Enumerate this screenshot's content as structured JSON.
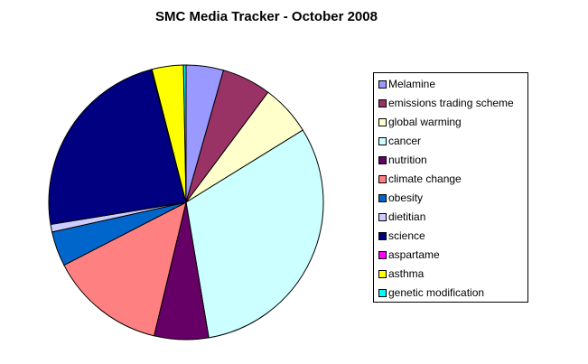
{
  "chart_data": {
    "type": "pie",
    "title": "SMC Media Tracker - October 2008",
    "categories": [
      "Melamine",
      "emissions trading scheme",
      "global warming",
      "cancer",
      "nutrition",
      "climate change",
      "obesity",
      "dietitian",
      "science",
      "aspartame",
      "asthma",
      "genetic modification"
    ],
    "values": [
      4.4,
      5.8,
      6.0,
      31.2,
      6.4,
      13.7,
      4.1,
      0.9,
      23.5,
      0.1,
      3.7,
      0.3
    ],
    "colors": [
      "#9999ff",
      "#993366",
      "#ffffcc",
      "#ccffff",
      "#660066",
      "#ff8080",
      "#0066cc",
      "#ccccff",
      "#000080",
      "#ff00ff",
      "#ffff00",
      "#00ffff"
    ],
    "legend": "right"
  }
}
